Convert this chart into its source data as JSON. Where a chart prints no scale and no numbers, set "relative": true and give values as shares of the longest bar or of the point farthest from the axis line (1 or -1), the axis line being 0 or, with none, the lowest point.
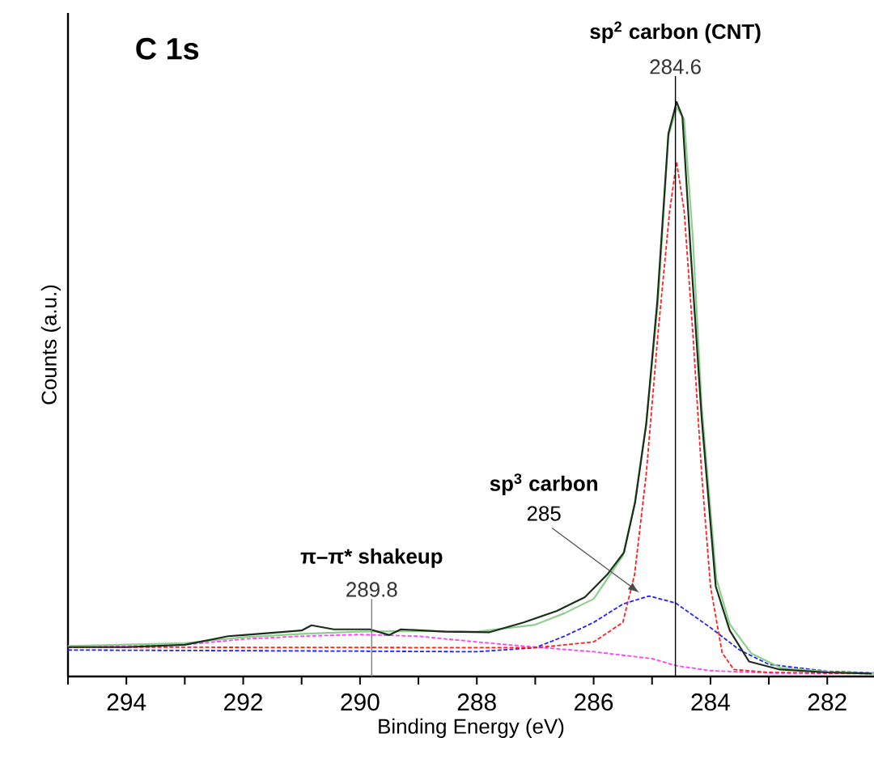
{
  "chart_data": {
    "type": "line",
    "title": "C 1s",
    "xlabel": "Binding Energy (eV)",
    "ylabel": "Counts (a.u.)",
    "relative": true,
    "tick_labels": "x",
    "xlim": [
      295,
      281.2
    ],
    "xticks": [
      {
        "value": 295,
        "label": null
      },
      294,
      {
        "value": 293,
        "label": null
      },
      292,
      {
        "value": 291,
        "label": null
      },
      290,
      {
        "value": 289,
        "label": null
      },
      288,
      {
        "value": 287,
        "label": null
      },
      286,
      {
        "value": 285,
        "label": null
      },
      284,
      {
        "value": 283,
        "label": null
      },
      282
    ],
    "series": [
      {
        "color": "#ff40ff",
        "line_style": "dashed",
        "x": [
          295,
          293,
          292,
          291,
          290,
          289,
          288,
          287,
          286,
          285,
          284.6,
          284,
          283,
          281.2
        ],
        "values": [
          0.051,
          0.055,
          0.065,
          0.07,
          0.073,
          0.07,
          0.06,
          0.051,
          0.043,
          0.031,
          0.019,
          0.01,
          0.006,
          0.005
        ]
      },
      {
        "color": "#2020ff",
        "line_style": "dashed",
        "x": [
          295,
          290,
          288,
          287,
          286.5,
          286,
          285.5,
          285.05,
          284.6,
          284,
          283.5,
          283,
          282,
          281.2
        ],
        "values": [
          0.046,
          0.044,
          0.043,
          0.05,
          0.07,
          0.094,
          0.126,
          0.14,
          0.128,
          0.085,
          0.046,
          0.021,
          0.009,
          0.006
        ]
      },
      {
        "color": "#ff2020",
        "line_style": "dashed",
        "x": [
          295,
          287,
          286,
          285.5,
          285.3,
          285.1,
          284.9,
          284.7,
          284.58,
          284.45,
          284.3,
          284.15,
          284,
          283.8,
          283.6,
          283,
          281.2
        ],
        "values": [
          0.051,
          0.05,
          0.06,
          0.094,
          0.177,
          0.352,
          0.595,
          0.809,
          0.896,
          0.81,
          0.595,
          0.352,
          0.157,
          0.041,
          0.012,
          0.007,
          0.005
        ]
      },
      {
        "color": "#8ccf8c",
        "line_style": "solid",
        "x": [
          295,
          293,
          292,
          291,
          290,
          289,
          288,
          287,
          286.5,
          286,
          285.5,
          285.3,
          285.1,
          284.9,
          284.72,
          284.58,
          284.45,
          284.3,
          284.15,
          283.9,
          283.67,
          283.3,
          282.8,
          282,
          281.2
        ],
        "values": [
          0.053,
          0.058,
          0.068,
          0.074,
          0.078,
          0.079,
          0.078,
          0.09,
          0.11,
          0.135,
          0.21,
          0.3,
          0.44,
          0.65,
          0.94,
          0.99,
          0.97,
          0.76,
          0.47,
          0.17,
          0.091,
          0.04,
          0.015,
          0.008,
          0.005
        ]
      },
      {
        "color": "#1a2e1a",
        "line_style": "solid",
        "x": [
          295,
          294,
          293,
          292.26,
          292,
          291,
          290.83,
          290.45,
          289.83,
          289.5,
          289.3,
          288.54,
          287.78,
          287.2,
          286.63,
          286.15,
          285.77,
          285.48,
          285.29,
          285.1,
          284.91,
          284.72,
          284.58,
          284.48,
          284.34,
          284.15,
          283.91,
          283.67,
          283.34,
          282.81,
          282,
          281.24
        ],
        "values": [
          0.051,
          0.051,
          0.055,
          0.07,
          0.072,
          0.08,
          0.089,
          0.082,
          0.082,
          0.072,
          0.082,
          0.078,
          0.077,
          0.094,
          0.114,
          0.138,
          0.177,
          0.216,
          0.303,
          0.439,
          0.653,
          0.945,
          1.0,
          0.974,
          0.741,
          0.449,
          0.157,
          0.08,
          0.026,
          0.012,
          0.007,
          0.005
        ]
      }
    ],
    "ref_lines": [
      {
        "axis": "x",
        "value": 284.6,
        "label": "284.6",
        "color": "#000000"
      },
      {
        "axis": "x",
        "value": 289.8,
        "label": "289.8",
        "color": "#808080"
      }
    ],
    "annotations": [
      {
        "text": "sp$^{2}$ carbon (CNT)",
        "x": 284.6,
        "y": 1.0
      },
      "sp$^{3}$ carbon",
      "285",
      {
        "text": "π–π* shakeup",
        "x": 289.8,
        "y": 0.082
      }
    ]
  }
}
